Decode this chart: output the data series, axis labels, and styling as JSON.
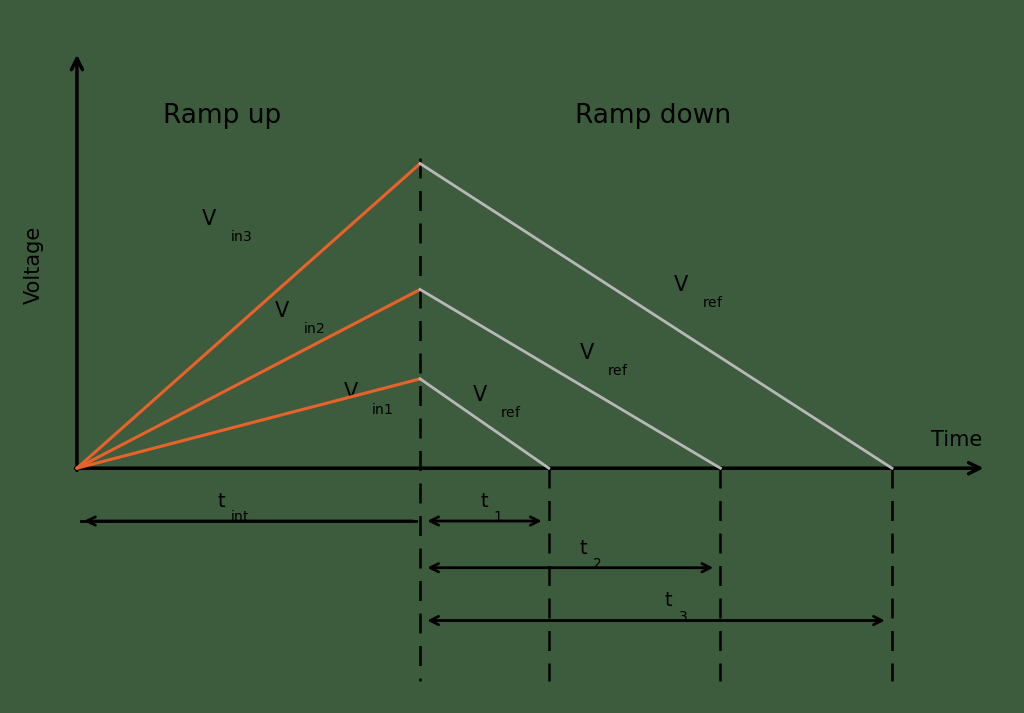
{
  "background_color": "#3d5c3e",
  "orange_color": "#e8622a",
  "gray_color": "#b8b8b8",
  "black": "#000000",
  "t_int": 4.0,
  "t1_end": 5.5,
  "t2_end": 7.5,
  "t3_end": 9.5,
  "v_in1_slope": 0.22,
  "v_in2_slope": 0.44,
  "v_in3_slope": 0.75,
  "xlim": [
    -0.3,
    10.8
  ],
  "ylim": [
    -2.2,
    4.4
  ],
  "plot_xlim": [
    -0.3,
    10.8
  ],
  "plot_ylim": [
    -2.2,
    4.4
  ],
  "figsize": [
    10.24,
    7.13
  ],
  "ramp_up_label": "Ramp up",
  "ramp_down_label": "Ramp down",
  "voltage_label": "Voltage",
  "time_label": "Time"
}
